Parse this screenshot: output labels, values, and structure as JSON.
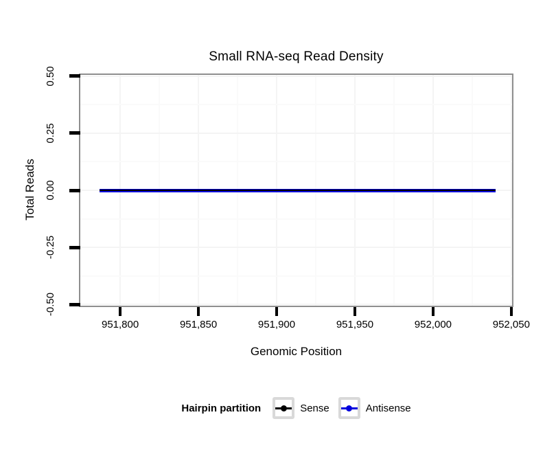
{
  "figure": {
    "background": "#ffffff"
  },
  "chart_data": {
    "type": "line",
    "title": "Small RNA-seq Read Density",
    "xlabel": "Genomic Position",
    "ylabel": "Total Reads",
    "xlim": [
      951774.5,
      952050.5
    ],
    "ylim": [
      -0.505,
      0.505
    ],
    "x_ticks": {
      "values": [
        951800,
        951850,
        951900,
        951950,
        952000,
        952050
      ],
      "labels": [
        "951,800",
        "951,850",
        "951,900",
        "951,950",
        "952,000",
        "952,050"
      ]
    },
    "y_ticks": {
      "values": [
        0.5,
        0.25,
        0,
        -0.25,
        -0.5
      ],
      "labels": [
        "0.50",
        "0.25",
        "0.00",
        "-0.25",
        "-0.50"
      ]
    },
    "grid": {
      "show_major": true,
      "show_minor": true,
      "major_color": "#f4f4f4",
      "minor_color": "#fafafa"
    },
    "panel": {
      "border_color": "#8e8e8e",
      "background": "#ffffff"
    },
    "axis": {
      "tick_color": "#000000",
      "tick_length": 13,
      "tick_thickness": 4
    },
    "series": [
      {
        "name": "Sense",
        "color": "#000000",
        "x": [
          951787,
          952040
        ],
        "y": [
          0,
          0
        ],
        "linewidth": 2.5,
        "zindex": 3
      },
      {
        "name": "Antisense",
        "color": "#0000DD",
        "x": [
          951787,
          952040
        ],
        "y": [
          0,
          0
        ],
        "linewidth": 5,
        "zindex": 2
      }
    ],
    "legend": {
      "title": "Hairpin partition",
      "position": "bottom",
      "entries": [
        {
          "label": "Sense",
          "color": "#000000"
        },
        {
          "label": "Antisense",
          "color": "#0000DD"
        }
      ]
    }
  }
}
